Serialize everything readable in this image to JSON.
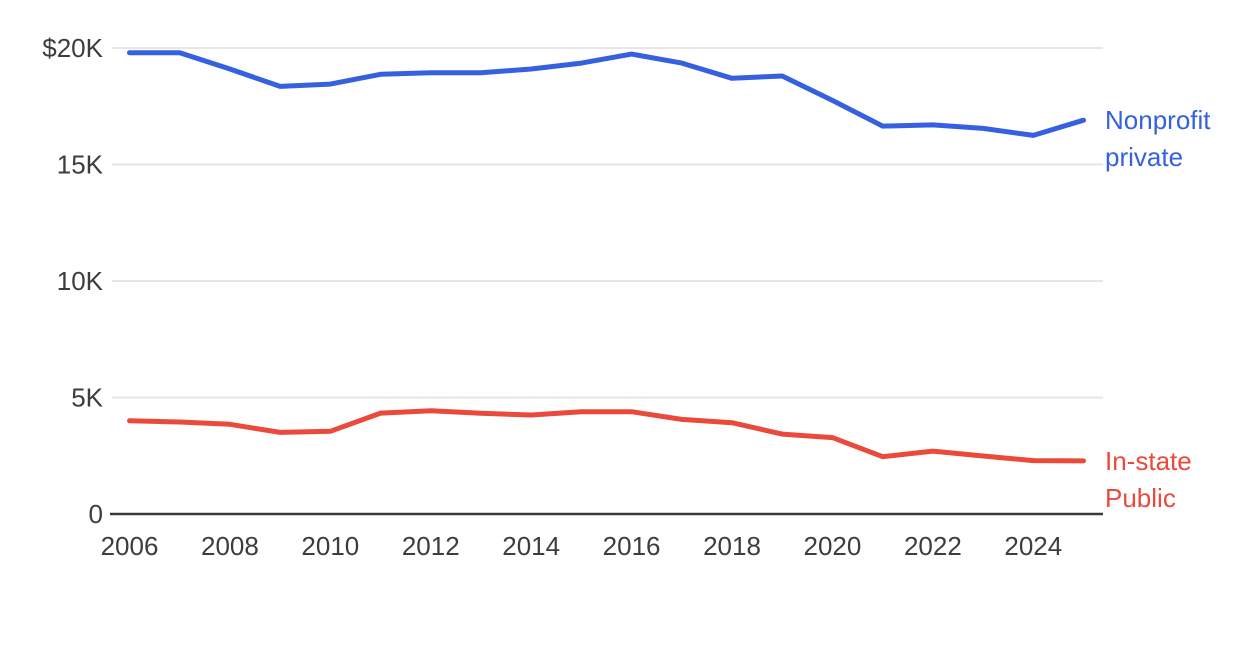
{
  "chart_data": {
    "type": "line",
    "title": "",
    "xlabel": "",
    "ylabel": "",
    "x": [
      2006,
      2007,
      2008,
      2009,
      2010,
      2011,
      2012,
      2013,
      2014,
      2015,
      2016,
      2017,
      2018,
      2019,
      2020,
      2021,
      2022,
      2023,
      2024,
      2025
    ],
    "series": [
      {
        "name": "Nonprofit private",
        "label_lines": [
          "Nonprofit",
          "private"
        ],
        "color": "#3560df",
        "values": [
          19800,
          19800,
          19100,
          18350,
          18450,
          18870,
          18940,
          18940,
          19100,
          19350,
          19740,
          19350,
          18700,
          18800,
          17750,
          16650,
          16700,
          16550,
          16250,
          16900
        ]
      },
      {
        "name": "In-state Public",
        "label_lines": [
          "In-state",
          "Public"
        ],
        "color": "#ea4a3b",
        "values": [
          4000,
          3950,
          3850,
          3500,
          3550,
          4330,
          4430,
          4320,
          4250,
          4390,
          4390,
          4060,
          3920,
          3430,
          3280,
          2460,
          2700,
          2490,
          2290,
          2280
        ]
      }
    ],
    "y_ticks": [
      {
        "value": 20000,
        "label": "$20K"
      },
      {
        "value": 15000,
        "label": "15K"
      },
      {
        "value": 10000,
        "label": "10K"
      },
      {
        "value": 5000,
        "label": "5K"
      },
      {
        "value": 0,
        "label": "0"
      }
    ],
    "x_ticks": [
      "2006",
      "2008",
      "2010",
      "2012",
      "2014",
      "2016",
      "2018",
      "2020",
      "2022",
      "2024"
    ],
    "ylim": [
      0,
      20000
    ],
    "xlim": [
      2006,
      2025
    ],
    "grid": "horizontal",
    "legend_position": "right-of-line-end"
  },
  "colors": {
    "axis_text": "#3d3d3d",
    "gridline": "#e6e6e6",
    "zero_axis": "#3a3a3a",
    "background": "#ffffff"
  }
}
